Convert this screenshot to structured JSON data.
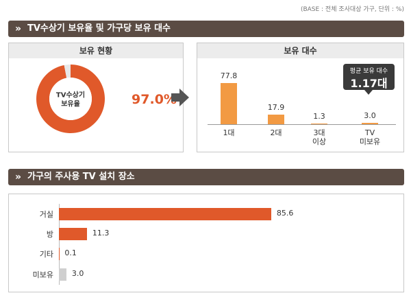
{
  "source": "(BASE : 전체 조사대상 가구, 단위 : %)",
  "sections": [
    "TV수상기 보유율 및 가구당 보유 대수",
    "가구의 주사용 TV 설치 장소"
  ],
  "chart_data": [
    {
      "type": "pie",
      "title": "보유 현황",
      "center_label": [
        "TV수상기",
        "보유율"
      ],
      "values": [
        97.0,
        3.0
      ],
      "value_labels": [
        "97.0%",
        null
      ],
      "colors": [
        "#e0592a",
        "#e8e8e8"
      ]
    },
    {
      "type": "bar",
      "title": "보유 대수",
      "categories": [
        "1대",
        "2대",
        "3대 이상",
        "TV 미보유"
      ],
      "values": [
        77.8,
        17.9,
        1.3,
        3.0
      ],
      "value_labels": [
        "77.8",
        "17.9",
        "1.3",
        "3.0"
      ],
      "color": "#f29a43",
      "ylim": [
        0,
        100
      ],
      "annotation": {
        "label": "평균 보유 대수",
        "value": "1.17대"
      }
    },
    {
      "type": "barh",
      "categories": [
        "거실",
        "방",
        "기타",
        "미보유"
      ],
      "values": [
        85.6,
        11.3,
        0.1,
        3.0
      ],
      "value_labels": [
        "85.6",
        "11.3",
        "0.1",
        "3.0"
      ],
      "colors": [
        "#e0592a",
        "#e0592a",
        "#e0592a",
        "#cfcfcf"
      ],
      "xlim": [
        0,
        100
      ]
    }
  ]
}
